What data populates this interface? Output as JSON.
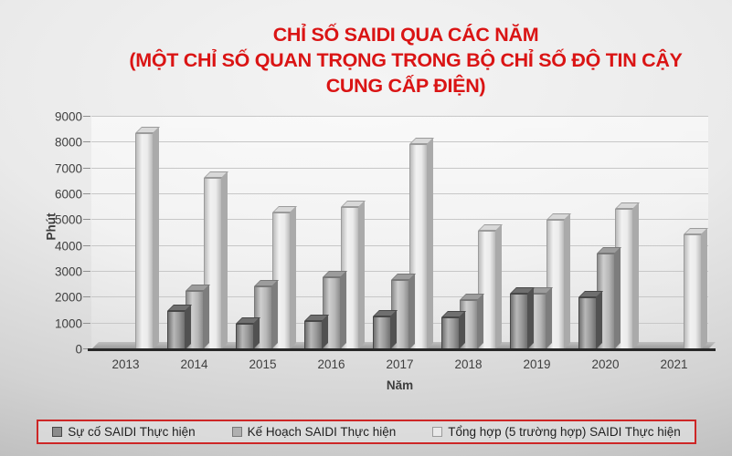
{
  "title": {
    "lines": [
      "CHỈ SỐ SAIDI QUA CÁC NĂM",
      "(MỘT CHỈ SỐ QUAN TRỌNG TRONG BỘ CHỈ SỐ ĐỘ TIN CẬY",
      "CUNG CẤP ĐIỆN)"
    ],
    "color": "#da1414"
  },
  "chart_data": {
    "type": "bar",
    "title": "CHỈ SỐ SAIDI QUA CÁC NĂM (MỘT CHỈ SỐ QUAN TRỌNG TRONG BỘ CHỈ SỐ ĐỘ TIN CẬY CUNG CẤP ĐIỆN)",
    "xlabel": "Năm",
    "ylabel": "Phút",
    "ylim": [
      0,
      9000
    ],
    "yticks": [
      0,
      1000,
      2000,
      3000,
      4000,
      5000,
      6000,
      7000,
      8000,
      9000
    ],
    "grid": true,
    "legend_position": "bottom",
    "effect": "3d-clustered-bars",
    "categories": [
      "2013",
      "2014",
      "2015",
      "2016",
      "2017",
      "2018",
      "2019",
      "2020",
      "2021"
    ],
    "series": [
      {
        "name": "Sự cố SAIDI Thực hiện",
        "values": [
          null,
          1500,
          1000,
          1100,
          1280,
          1250,
          2150,
          2000,
          null
        ],
        "color_front": "#8c8c8c",
        "color_side": "#515151",
        "color_top": "#6f6f6f",
        "color_edge": "#474747"
      },
      {
        "name": "Kế Hoạch SAIDI Thực hiện",
        "values": [
          null,
          2250,
          2450,
          2800,
          2700,
          1900,
          2150,
          3700,
          null
        ],
        "color_front": "#b0b0b0",
        "color_side": "#7d7d7d",
        "color_top": "#9c9c9c",
        "color_edge": "#787878"
      },
      {
        "name": "Tổng hợp (5 trường hợp) SAIDI Thực hiện",
        "values": [
          8350,
          6650,
          5300,
          5500,
          7950,
          4600,
          5000,
          5450,
          4450
        ],
        "color_front": "#e9e9e9",
        "color_side": "#aaaaaa",
        "color_top": "#d8d8d8",
        "color_edge": "#9b9b9b"
      }
    ]
  },
  "colors": {
    "title_red": "#da1414",
    "legend_border_red": "#cd2626",
    "axis_text": "#3f3f3f",
    "gridline": "#c7c7c7",
    "baseline": "#282828"
  }
}
